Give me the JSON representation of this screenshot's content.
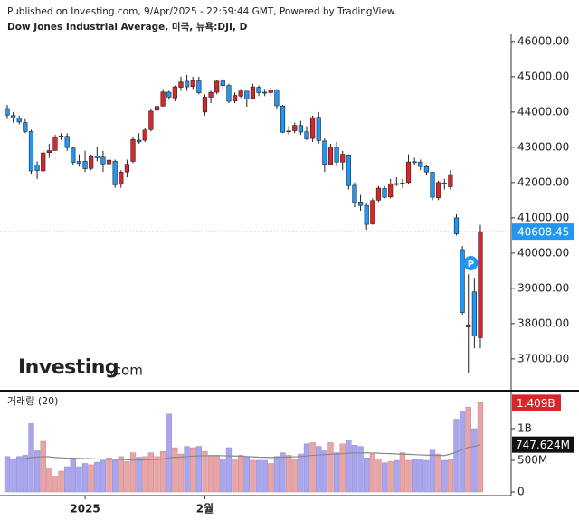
{
  "header": {
    "published": "Published on Investing.com, 9/Apr/2025 - 22:59:44 GMT, Powered by TradingView.",
    "instrument": "Dow Jones Industrial Average, 미국, 뉴욕:DJI, D"
  },
  "logo": {
    "main": "Investing",
    "suffix": ".com"
  },
  "chart_data": {
    "type": "candlestick",
    "categories": [
      null,
      null,
      null,
      null,
      null,
      null,
      null,
      null,
      null,
      null,
      null,
      null,
      null,
      "2025",
      null,
      null,
      null,
      null,
      null,
      null,
      null,
      null,
      null,
      null,
      null,
      null,
      null,
      null,
      null,
      null,
      null,
      null,
      null,
      "2월",
      null,
      null,
      null,
      null,
      null,
      null,
      null,
      null,
      null,
      null,
      null,
      null,
      null,
      null,
      null,
      null,
      null,
      null,
      null,
      null,
      null,
      null,
      null,
      null,
      null,
      null,
      null,
      null,
      null,
      null,
      null,
      null,
      null,
      null,
      null,
      null,
      null,
      null,
      null,
      null,
      null,
      null,
      null,
      null,
      null,
      null
    ],
    "up_color": "#d9262b",
    "down_color": "#2196f3",
    "open": [
      44100,
      43900,
      43830,
      43700,
      43450,
      42500,
      42330,
      42850,
      42910,
      43300,
      43310,
      42980,
      42600,
      42600,
      42400,
      42750,
      42720,
      42530,
      42600,
      41950,
      42300,
      42600,
      43200,
      43200,
      43500,
      44050,
      44170,
      44560,
      44400,
      44700,
      44870,
      44720,
      44880,
      44000,
      44420,
      44560,
      44880,
      44750,
      44310,
      44450,
      44590,
      44380,
      44700,
      44560,
      44550,
      44620,
      44170,
      43440,
      43470,
      43620,
      43440,
      43250,
      43850,
      43180,
      42520,
      43000,
      42580,
      42780,
      41920,
      41450,
      41350,
      40830,
      41500,
      41830,
      41590,
      41970,
      41960,
      42000,
      42590,
      42580,
      42450,
      42290,
      41570,
      41990,
      41880,
      41000,
      40100,
      37900,
      38900,
      37600
    ],
    "high": [
      44200,
      44000,
      43900,
      43800,
      43500,
      42600,
      42900,
      43100,
      43350,
      43400,
      43400,
      43000,
      42800,
      42900,
      42800,
      43000,
      42900,
      42700,
      42650,
      42350,
      42650,
      43300,
      43400,
      43550,
      44100,
      44200,
      44650,
      44600,
      44750,
      45000,
      45050,
      45000,
      45000,
      44500,
      44600,
      44900,
      44950,
      44800,
      44550,
      44650,
      44600,
      44800,
      44750,
      44650,
      44700,
      44650,
      44200,
      43600,
      43700,
      43750,
      43600,
      43900,
      44000,
      43250,
      43100,
      43150,
      42900,
      42800,
      42000,
      41650,
      41400,
      41550,
      41900,
      41900,
      42100,
      42150,
      42100,
      42800,
      42700,
      42650,
      42500,
      42300,
      42050,
      42100,
      42350,
      41100,
      40200,
      39400,
      39300,
      40800
    ],
    "low": [
      43800,
      43700,
      43650,
      43400,
      42250,
      42100,
      42300,
      42700,
      42900,
      43200,
      42900,
      42500,
      42450,
      42300,
      42350,
      42600,
      42300,
      42400,
      41850,
      41850,
      42150,
      42550,
      43100,
      43150,
      43450,
      43950,
      44150,
      44350,
      44300,
      44600,
      44600,
      44650,
      44500,
      43900,
      44250,
      44500,
      44650,
      44250,
      44250,
      44400,
      44150,
      44350,
      44450,
      44450,
      44450,
      44100,
      43400,
      43350,
      43400,
      43350,
      43200,
      43150,
      43100,
      42300,
      42500,
      42450,
      42350,
      41800,
      41300,
      41200,
      40660,
      40800,
      41450,
      41550,
      41550,
      41900,
      41850,
      41950,
      42500,
      42350,
      42200,
      41500,
      41500,
      41800,
      41800,
      40500,
      38250,
      36611,
      37300,
      37300
    ],
    "close": [
      43914,
      43828,
      43717,
      43450,
      42327,
      42342,
      42840,
      42907,
      43297,
      43325,
      42992,
      42573,
      42544,
      42392,
      42732,
      42706,
      42528,
      42635,
      41938,
      42297,
      42518,
      43221,
      43153,
      43488,
      44025,
      44157,
      44565,
      44424,
      44713,
      44850,
      44713,
      44882,
      44545,
      44421,
      44556,
      44873,
      44747,
      44303,
      44470,
      44593,
      44368,
      44711,
      44546,
      44556,
      44627,
      44176,
      43428,
      43461,
      43621,
      43433,
      43240,
      43841,
      43191,
      42521,
      43006,
      42579,
      42802,
      41912,
      41433,
      41350,
      40813,
      41488,
      41842,
      41581,
      41965,
      41953,
      41985,
      42583,
      42587,
      42455,
      42300,
      41584,
      42002,
      41989,
      42226,
      40546,
      38315,
      37966,
      37646,
      40608.45
    ],
    "ylim": [
      36150,
      46150
    ],
    "yticks": [
      {
        "value": 37000,
        "label": "37000.00"
      },
      {
        "value": 38000,
        "label": "38000.00"
      },
      {
        "value": 39000,
        "label": "39000.00"
      },
      {
        "value": 40000,
        "label": "40000.00"
      },
      {
        "value": 41000,
        "label": "41000.00"
      },
      {
        "value": 42000,
        "label": "42000.00"
      },
      {
        "value": 43000,
        "label": "43000.00"
      },
      {
        "value": 44000,
        "label": "44000.00"
      },
      {
        "value": 45000,
        "label": "45000.00"
      },
      {
        "value": 46000,
        "label": "46000.00"
      }
    ],
    "volume_title": "거래량 (20)",
    "volume": {
      "up_color": "#e8a4a6",
      "down_color": "#aaa6ee",
      "values": [
        560,
        520,
        560,
        580,
        1080,
        650,
        800,
        380,
        250,
        330,
        400,
        530,
        400,
        450,
        430,
        470,
        500,
        540,
        500,
        560,
        480,
        620,
        550,
        560,
        620,
        560,
        640,
        1230,
        700,
        600,
        720,
        700,
        720,
        640,
        560,
        560,
        520,
        700,
        520,
        580,
        560,
        500,
        500,
        500,
        450,
        560,
        620,
        580,
        520,
        600,
        760,
        780,
        720,
        650,
        780,
        620,
        760,
        820,
        740,
        720,
        540,
        600,
        520,
        460,
        480,
        500,
        620,
        500,
        520,
        520,
        500,
        660,
        600,
        500,
        520,
        1150,
        1280,
        1340,
        1000,
        1409
      ],
      "value_labels": [
        null,
        null,
        null,
        null,
        null,
        null,
        null,
        null,
        null,
        null,
        null,
        null,
        null,
        null,
        null,
        null,
        null,
        null,
        null,
        null,
        null,
        null,
        null,
        null,
        null,
        null,
        null,
        null,
        null,
        null,
        null,
        null,
        null,
        null,
        null,
        null,
        null,
        null,
        null,
        null,
        null,
        null,
        null,
        null,
        null,
        null,
        null,
        null,
        null,
        null,
        null,
        null,
        null,
        null,
        null,
        null,
        null,
        null,
        null,
        null,
        null,
        null,
        null,
        null,
        null,
        null,
        null,
        null,
        null,
        null,
        null,
        null,
        null,
        null,
        null,
        null,
        null,
        null,
        null,
        "1.409B"
      ]
    },
    "volume_ma": {
      "color": "#888888",
      "values": [
        520,
        522,
        525,
        528,
        545,
        550,
        560,
        555,
        545,
        540,
        535,
        535,
        530,
        528,
        525,
        522,
        520,
        518,
        515,
        512,
        510,
        505,
        505,
        508,
        512,
        515,
        520,
        540,
        548,
        552,
        560,
        565,
        570,
        572,
        575,
        575,
        572,
        570,
        568,
        565,
        560,
        555,
        550,
        548,
        545,
        548,
        550,
        552,
        556,
        560,
        570,
        578,
        585,
        590,
        596,
        600,
        606,
        612,
        615,
        617,
        618,
        615,
        612,
        608,
        605,
        600,
        598,
        595,
        590,
        585,
        582,
        580,
        578,
        575,
        600,
        630,
        670,
        705,
        720,
        747.624
      ],
      "value_labels": [
        null,
        null,
        null,
        null,
        null,
        null,
        null,
        null,
        null,
        null,
        null,
        null,
        null,
        null,
        null,
        null,
        null,
        null,
        null,
        null,
        null,
        null,
        null,
        null,
        null,
        null,
        null,
        null,
        null,
        null,
        null,
        null,
        null,
        null,
        null,
        null,
        null,
        null,
        null,
        null,
        null,
        null,
        null,
        null,
        null,
        null,
        null,
        null,
        null,
        null,
        null,
        null,
        null,
        null,
        null,
        null,
        null,
        null,
        null,
        null,
        null,
        null,
        null,
        null,
        null,
        null,
        null,
        null,
        null,
        null,
        null,
        null,
        null,
        null,
        null,
        null,
        null,
        null,
        null,
        "747.624M"
      ]
    },
    "vlim": [
      0,
      1500
    ],
    "vticks": [
      0,
      {
        "value": 500,
        "label": "500M"
      },
      {
        "value": 1000,
        "label": "1B"
      }
    ]
  }
}
